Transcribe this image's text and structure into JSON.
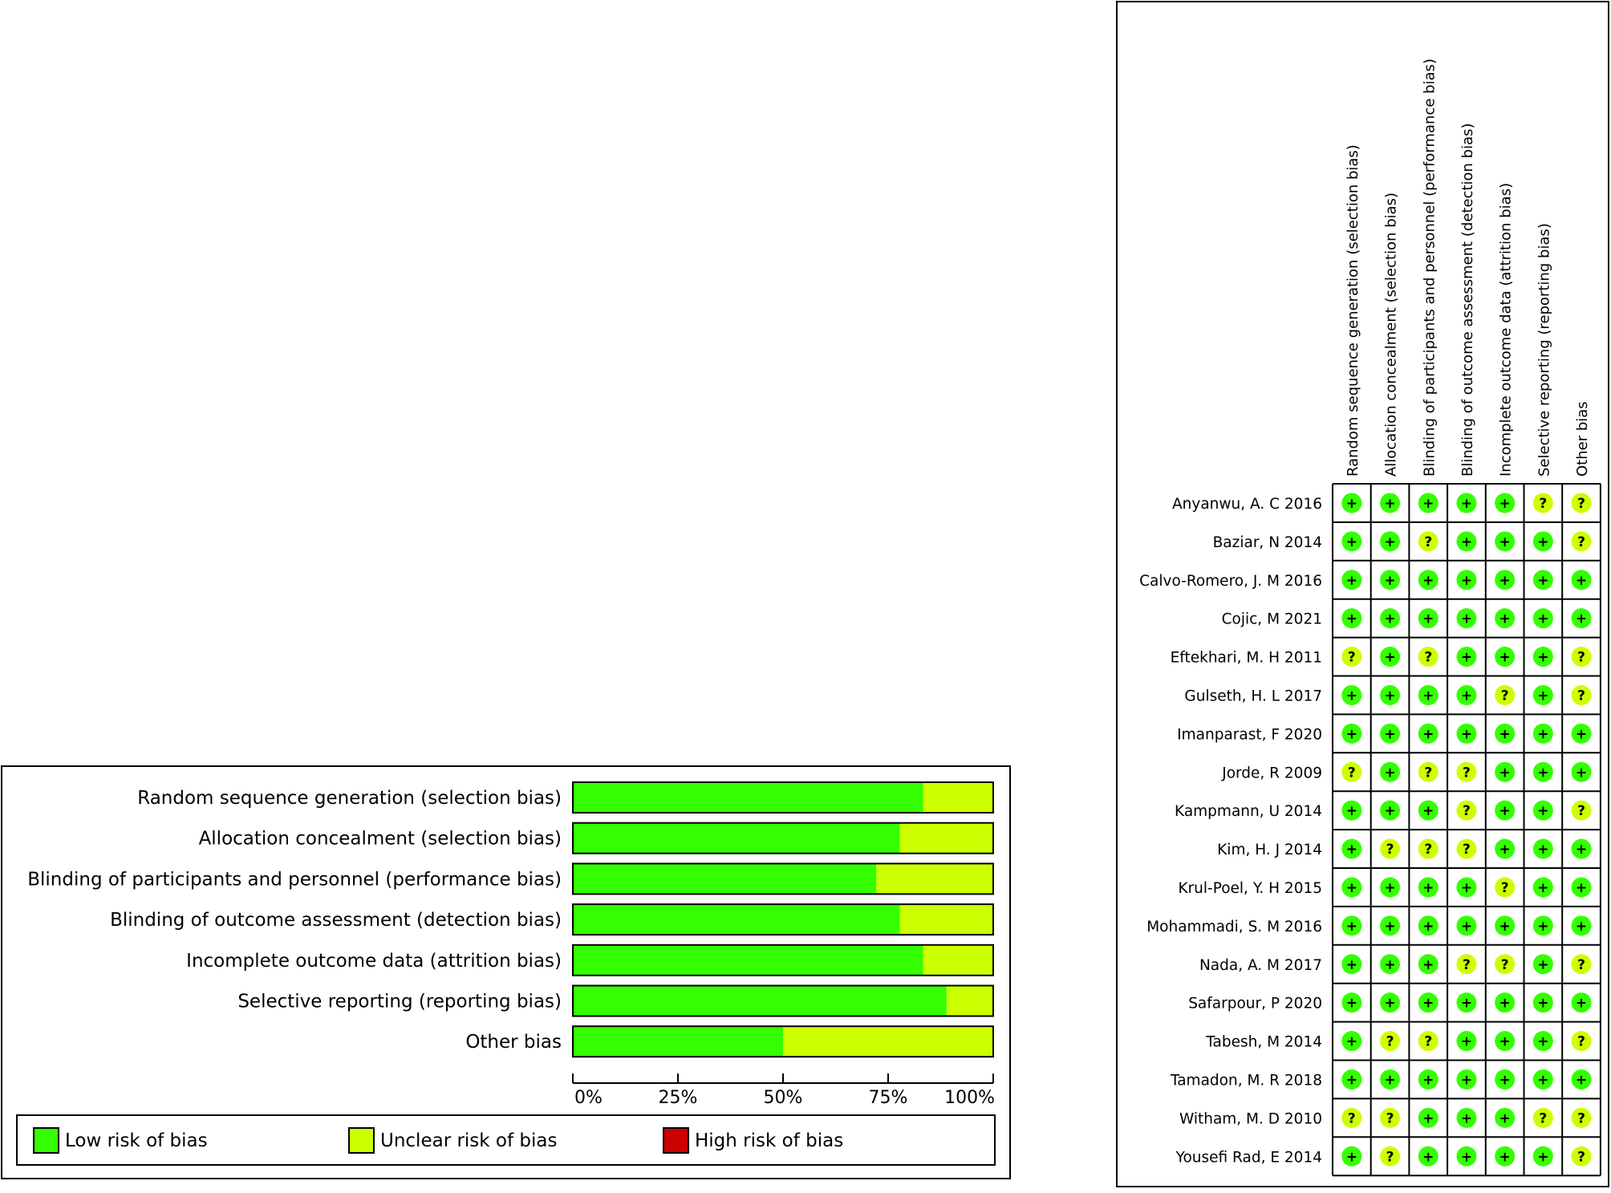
{
  "chart_data": [
    {
      "type": "bar",
      "orientation": "horizontal",
      "stacked": true,
      "title": "",
      "categories": [
        "Random sequence generation (selection bias)",
        "Allocation concealment (selection bias)",
        "Blinding of participants and personnel (performance bias)",
        "Blinding of outcome assessment (detection bias)",
        "Incomplete outcome data (attrition bias)",
        "Selective reporting (reporting bias)",
        "Other bias"
      ],
      "series": [
        {
          "name": "Low risk of bias",
          "values": [
            83.3,
            77.8,
            72.2,
            77.8,
            83.3,
            88.9,
            50.0
          ]
        },
        {
          "name": "Unclear risk of bias",
          "values": [
            16.7,
            22.2,
            27.8,
            22.2,
            16.7,
            11.1,
            50.0
          ]
        },
        {
          "name": "High risk of bias",
          "values": [
            0,
            0,
            0,
            0,
            0,
            0,
            0
          ]
        }
      ],
      "xlim": [
        0,
        100
      ],
      "ticks": [
        "0%",
        "25%",
        "50%",
        "75%",
        "100%"
      ],
      "xlabel": "",
      "ylabel": "",
      "grid": false,
      "legend": [
        {
          "label": "Low risk of bias",
          "color": "#33ff00"
        },
        {
          "label": "Unclear risk of bias",
          "color": "#ccff00"
        },
        {
          "label": "High risk of bias",
          "color": "#cc0000"
        }
      ]
    },
    {
      "type": "table",
      "title": "",
      "columns": [
        "Random sequence generation (selection bias)",
        "Allocation concealment (selection bias)",
        "Blinding of participants and personnel (performance bias)",
        "Blinding of outcome assessment (detection bias)",
        "Incomplete outcome data (attrition bias)",
        "Selective reporting (reporting bias)",
        "Other bias"
      ],
      "rows": [
        {
          "study": "Anyanwu, A. C 2016",
          "ratings": [
            "+",
            "+",
            "+",
            "+",
            "+",
            "?",
            "?"
          ]
        },
        {
          "study": "Baziar, N 2014",
          "ratings": [
            "+",
            "+",
            "?",
            "+",
            "+",
            "+",
            "?"
          ]
        },
        {
          "study": "Calvo-Romero, J. M 2016",
          "ratings": [
            "+",
            "+",
            "+",
            "+",
            "+",
            "+",
            "+"
          ]
        },
        {
          "study": "Cojic, M 2021",
          "ratings": [
            "+",
            "+",
            "+",
            "+",
            "+",
            "+",
            "+"
          ]
        },
        {
          "study": "Eftekhari, M. H 2011",
          "ratings": [
            "?",
            "+",
            "?",
            "+",
            "+",
            "+",
            "?"
          ]
        },
        {
          "study": "Gulseth, H. L 2017",
          "ratings": [
            "+",
            "+",
            "+",
            "+",
            "?",
            "+",
            "?"
          ]
        },
        {
          "study": "Imanparast, F 2020",
          "ratings": [
            "+",
            "+",
            "+",
            "+",
            "+",
            "+",
            "+"
          ]
        },
        {
          "study": "Jorde, R 2009",
          "ratings": [
            "?",
            "+",
            "?",
            "?",
            "+",
            "+",
            "+"
          ]
        },
        {
          "study": "Kampmann, U 2014",
          "ratings": [
            "+",
            "+",
            "+",
            "?",
            "+",
            "+",
            "?"
          ]
        },
        {
          "study": "Kim, H. J 2014",
          "ratings": [
            "+",
            "?",
            "?",
            "?",
            "+",
            "+",
            "+"
          ]
        },
        {
          "study": "Krul-Poel, Y. H 2015",
          "ratings": [
            "+",
            "+",
            "+",
            "+",
            "?",
            "+",
            "+"
          ]
        },
        {
          "study": "Mohammadi, S. M 2016",
          "ratings": [
            "+",
            "+",
            "+",
            "+",
            "+",
            "+",
            "+"
          ]
        },
        {
          "study": "Nada, A. M 2017",
          "ratings": [
            "+",
            "+",
            "+",
            "?",
            "?",
            "+",
            "?"
          ]
        },
        {
          "study": "Safarpour, P 2020",
          "ratings": [
            "+",
            "+",
            "+",
            "+",
            "+",
            "+",
            "+"
          ]
        },
        {
          "study": "Tabesh, M 2014",
          "ratings": [
            "+",
            "?",
            "?",
            "+",
            "+",
            "+",
            "?"
          ]
        },
        {
          "study": "Tamadon, M. R 2018",
          "ratings": [
            "+",
            "+",
            "+",
            "+",
            "+",
            "+",
            "+"
          ]
        },
        {
          "study": "Witham, M. D 2010",
          "ratings": [
            "?",
            "?",
            "+",
            "+",
            "+",
            "?",
            "?"
          ]
        },
        {
          "study": "Yousefi Rad, E 2014",
          "ratings": [
            "+",
            "?",
            "+",
            "+",
            "+",
            "+",
            "?"
          ]
        }
      ],
      "colors": {
        "low": "#33ff00",
        "unclear": "#ccff00",
        "high": "#cc0000"
      }
    }
  ]
}
